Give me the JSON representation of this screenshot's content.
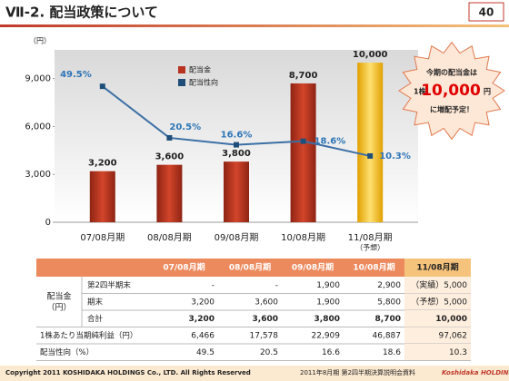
{
  "header": {
    "title": "Ⅶ-2. 配当政策について",
    "page": "40"
  },
  "chart_data": {
    "type": "bar",
    "y_axis_label": "（円）",
    "categories": [
      "07/08月期",
      "08/08月期",
      "09/08月期",
      "10/08月期",
      "11/08月期"
    ],
    "category_sublabels": [
      null,
      null,
      null,
      null,
      "（予想）"
    ],
    "ylim": [
      0,
      10800
    ],
    "yticks": [
      0,
      {
        "value": 3000,
        "label": "3,000"
      },
      {
        "value": 6000,
        "label": "6,000"
      },
      {
        "value": 9000,
        "label": "9,000"
      }
    ],
    "y2lim": [
      -27,
      70
    ],
    "legend": "top-left",
    "series": [
      {
        "name": "配当金",
        "type": "bar",
        "color": "#b8321f",
        "highlight_color": "#f5b400",
        "values": [
          3200,
          3600,
          3800,
          8700,
          10000
        ],
        "value_labels": [
          "3,200",
          "3,600",
          "3,800",
          "8,700",
          "10,000"
        ]
      },
      {
        "name": "配当性向",
        "type": "line",
        "axis": "y2",
        "color": "#1f4e79",
        "values": [
          49.5,
          20.5,
          16.6,
          18.6,
          10.3
        ],
        "value_labels": [
          "49.5%",
          "20.5%",
          "16.6%",
          "18.6%",
          "10.3%"
        ]
      }
    ]
  },
  "callout": {
    "line1": "今期の配当金は",
    "prefix": "1株",
    "amount": "10,000",
    "unit": "円",
    "line3": "に増配予定！"
  },
  "table": {
    "header": [
      "07/08月期",
      "08/08月期",
      "09/08月期",
      "10/08月期",
      "11/08月期"
    ],
    "group_label": [
      "配当金",
      "（円）"
    ],
    "dividend_rows": [
      {
        "label": "第2四半期末",
        "cells": [
          "-",
          "-",
          "1,900",
          "2,900",
          "（実績）5,000"
        ]
      },
      {
        "label": "期末",
        "cells": [
          "3,200",
          "3,600",
          "1,900",
          "5,800",
          "（予想）5,000"
        ]
      },
      {
        "label": "合計",
        "cells": [
          "3,200",
          "3,600",
          "3,800",
          "8,700",
          "10,000"
        ]
      }
    ],
    "other_rows": [
      {
        "label": "1株あたり当期純利益（円）",
        "cells": [
          "6,466",
          "17,578",
          "22,909",
          "46,887",
          "97,062"
        ]
      },
      {
        "label": "配当性向（%）",
        "cells": [
          "49.5",
          "20.5",
          "16.6",
          "18.6",
          "10.3"
        ]
      }
    ]
  },
  "footer": {
    "copyright": "Copyright 2011 KOSHIDAKA HOLDINGS Co., LTD. All Rights Reserved",
    "doc": "2011年8月期 第2四半期決算説明会資料",
    "logo": "Koshidaka HOLDINGS"
  }
}
